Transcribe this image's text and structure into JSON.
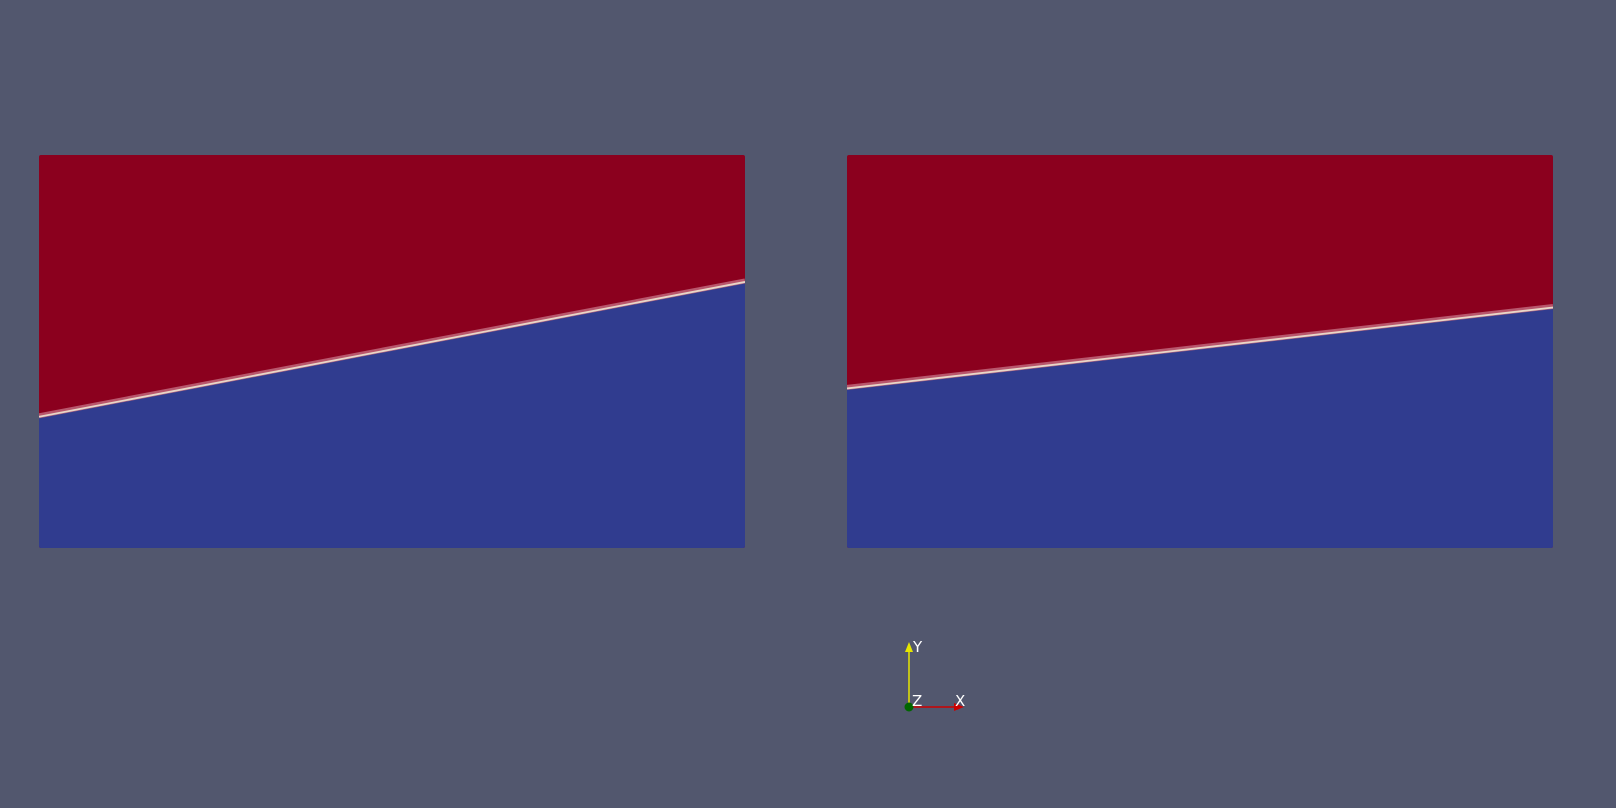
{
  "scene": {
    "background": "#52576e",
    "colors": {
      "upper_phase": "#8b001e",
      "lower_phase": "#303c8f",
      "interface_light": "#e8d7c8",
      "interface_mid": "#c0657a"
    },
    "panels": [
      {
        "id": "left",
        "interface_left_fraction": 0.666,
        "interface_right_fraction": 0.323
      },
      {
        "id": "right",
        "interface_left_fraction": 0.594,
        "interface_right_fraction": 0.388
      }
    ]
  },
  "axes": {
    "x_label": "X",
    "y_label": "Y",
    "z_label": "Z",
    "x_color": "#cc0000",
    "y_color": "#e6e600",
    "z_color": "#006600"
  }
}
